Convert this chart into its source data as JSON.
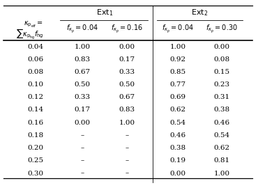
{
  "kappa_col": [
    0.04,
    0.06,
    0.08,
    0.1,
    0.12,
    0.14,
    0.16,
    0.18,
    0.2,
    0.25,
    0.3
  ],
  "ext1_col1": [
    "1.00",
    "0.83",
    "0.67",
    "0.50",
    "0.33",
    "0.17",
    "0.00",
    "-",
    "-",
    "-",
    "-"
  ],
  "ext1_col2": [
    "0.00",
    "0.17",
    "0.33",
    "0.50",
    "0.67",
    "0.83",
    "1.00",
    "-",
    "-",
    "-",
    "-"
  ],
  "ext2_col1": [
    "1.00",
    "0.92",
    "0.85",
    "0.77",
    "0.69",
    "0.62",
    "0.54",
    "0.46",
    "0.38",
    "0.19",
    "0.00"
  ],
  "ext2_col2": [
    "0.00",
    "0.08",
    "0.15",
    "0.23",
    "0.31",
    "0.38",
    "0.46",
    "0.54",
    "0.62",
    "0.81",
    "1.00"
  ],
  "font_size": 7.5
}
